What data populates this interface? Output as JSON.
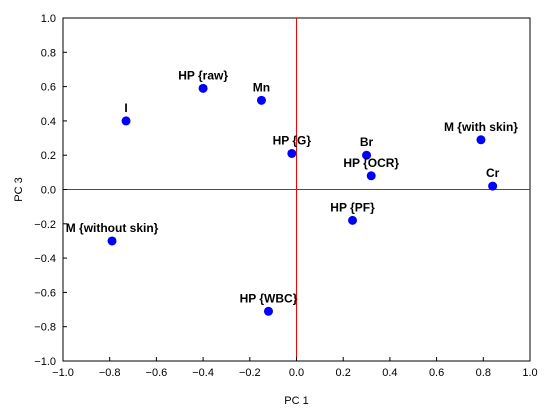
{
  "chart_data": {
    "type": "scatter",
    "title": "",
    "xlabel": "PC 1",
    "ylabel": "PC 3",
    "xlim": [
      -1.0,
      1.0
    ],
    "ylim": [
      -1.0,
      1.0
    ],
    "xticks": [
      -1.0,
      -0.8,
      -0.6,
      -0.4,
      -0.2,
      0.0,
      0.2,
      0.4,
      0.6,
      0.8,
      1.0
    ],
    "yticks": [
      -1.0,
      -0.8,
      -0.6,
      -0.4,
      -0.2,
      0.0,
      0.2,
      0.4,
      0.6,
      0.8,
      1.0
    ],
    "grid": false,
    "reference_lines": {
      "x": 0.0,
      "y": 0.0,
      "color": "#ff0000"
    },
    "marker_color": "#0000ff",
    "points": [
      {
        "label": "HP {raw}",
        "x": -0.4,
        "y": 0.59,
        "label_pos": "above"
      },
      {
        "label": "Mn",
        "x": -0.15,
        "y": 0.52,
        "label_pos": "above"
      },
      {
        "label": "I",
        "x": -0.73,
        "y": 0.4,
        "label_pos": "above"
      },
      {
        "label": "HP {G}",
        "x": -0.02,
        "y": 0.21,
        "label_pos": "above"
      },
      {
        "label": "Br",
        "x": 0.3,
        "y": 0.2,
        "label_pos": "above"
      },
      {
        "label": "M {with skin}",
        "x": 0.79,
        "y": 0.29,
        "label_pos": "above"
      },
      {
        "label": "HP {OCR}",
        "x": 0.32,
        "y": 0.08,
        "label_pos": "above"
      },
      {
        "label": "Cr",
        "x": 0.84,
        "y": 0.02,
        "label_pos": "above"
      },
      {
        "label": "HP {PF}",
        "x": 0.24,
        "y": -0.18,
        "label_pos": "above"
      },
      {
        "label": "M {without skin}",
        "x": -0.79,
        "y": -0.3,
        "label_pos": "above"
      },
      {
        "label": "HP {WBC}",
        "x": -0.12,
        "y": -0.71,
        "label_pos": "above"
      }
    ]
  }
}
